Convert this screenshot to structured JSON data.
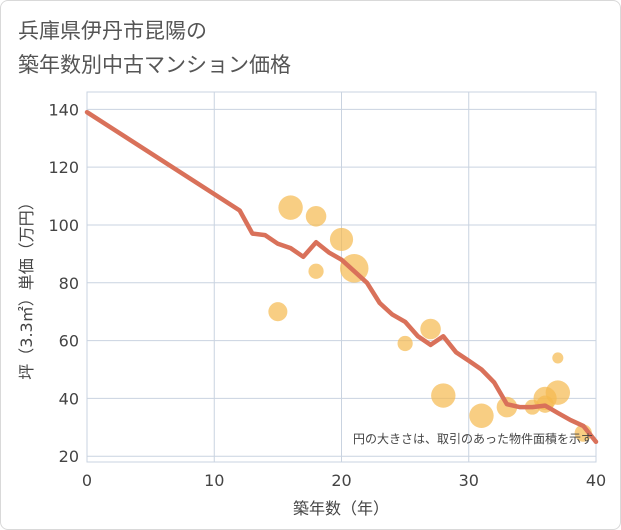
{
  "title_lines": [
    "兵庫県伊丹市昆陽の",
    "築年数別中古マンション価格"
  ],
  "colors": {
    "line": "#d9715a",
    "bubble": "#f5b94f",
    "grid": "#c9d3e0",
    "border": "#d9d9d9"
  },
  "chart_data": {
    "type": "scatter",
    "xlabel": "築年数（年）",
    "ylabel": "坪（3.3㎡）単価（万円）",
    "xlim": [
      0,
      40
    ],
    "ylim": [
      18,
      146
    ],
    "xticks": [
      0,
      10,
      20,
      30,
      40
    ],
    "yticks": [
      20,
      40,
      60,
      80,
      100,
      120,
      140
    ],
    "grid": true,
    "note": "円の大きさは、取引のあった物件面積を示す",
    "series": [
      {
        "kind": "line",
        "points": [
          [
            0,
            139
          ],
          [
            12,
            105
          ],
          [
            13,
            97
          ],
          [
            14,
            96.5
          ],
          [
            15,
            93.5
          ],
          [
            16,
            92
          ],
          [
            17,
            89
          ],
          [
            18,
            94
          ],
          [
            19,
            90.5
          ],
          [
            20,
            88
          ],
          [
            21,
            84
          ],
          [
            22,
            80
          ],
          [
            23,
            73
          ],
          [
            24,
            69
          ],
          [
            25,
            66.5
          ],
          [
            26,
            61.5
          ],
          [
            27,
            58.5
          ],
          [
            28,
            61.5
          ],
          [
            29,
            56
          ],
          [
            30,
            53
          ],
          [
            31,
            50
          ],
          [
            32,
            45.5
          ],
          [
            33,
            38
          ],
          [
            34,
            37
          ],
          [
            35,
            37
          ],
          [
            36,
            37.5
          ],
          [
            37,
            35
          ],
          [
            38,
            32.5
          ],
          [
            39,
            30.5
          ],
          [
            40,
            25
          ]
        ]
      },
      {
        "kind": "bubble",
        "points": [
          {
            "x": 15,
            "y": 70,
            "size": 2
          },
          {
            "x": 16,
            "y": 106,
            "size": 4
          },
          {
            "x": 18,
            "y": 103,
            "size": 2.5
          },
          {
            "x": 18,
            "y": 84,
            "size": 1
          },
          {
            "x": 20,
            "y": 95,
            "size": 3.5
          },
          {
            "x": 21,
            "y": 85,
            "size": 6
          },
          {
            "x": 25,
            "y": 59,
            "size": 1
          },
          {
            "x": 27,
            "y": 64,
            "size": 2.5
          },
          {
            "x": 28,
            "y": 41,
            "size": 4
          },
          {
            "x": 31,
            "y": 34,
            "size": 4
          },
          {
            "x": 33,
            "y": 37,
            "size": 2.5
          },
          {
            "x": 35,
            "y": 37,
            "size": 1
          },
          {
            "x": 36,
            "y": 40,
            "size": 3.5
          },
          {
            "x": 36,
            "y": 38,
            "size": 1.5
          },
          {
            "x": 37,
            "y": 42,
            "size": 4
          },
          {
            "x": 37,
            "y": 54,
            "size": 0.3
          },
          {
            "x": 39,
            "y": 28,
            "size": 1.5
          }
        ]
      }
    ]
  }
}
